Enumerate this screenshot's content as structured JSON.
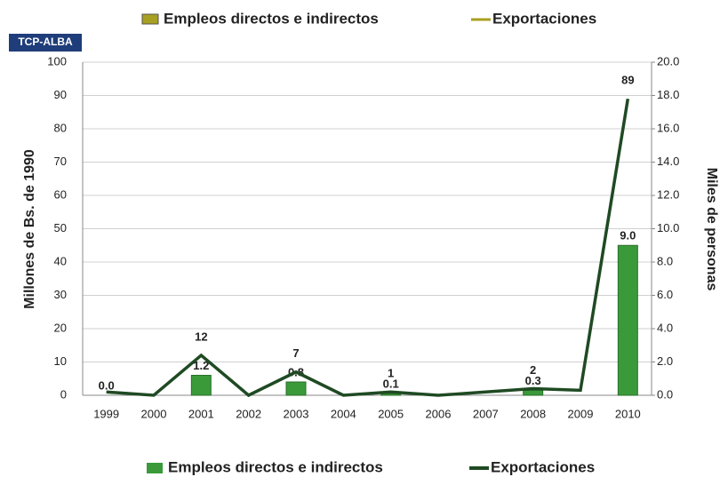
{
  "chart_data": {
    "type": "bar_line",
    "badge": "TCP-ALBA",
    "ylabel": "Millones de Bs. de 1990",
    "y2label": "Miles de personas",
    "categories": [
      "1999",
      "2000",
      "2001",
      "2002",
      "2003",
      "2004",
      "2005",
      "2006",
      "2007",
      "2008",
      "2009",
      "2010"
    ],
    "series": [
      {
        "name": "Empleos directos e indirectos",
        "type": "bar",
        "axis": "y2",
        "color": "#3a9a3a",
        "values": [
          0,
          0,
          1.2,
          0,
          0.8,
          0,
          0.1,
          0,
          0,
          0.3,
          0,
          9.0
        ],
        "value_labels": [
          "0.0",
          null,
          "1.2",
          null,
          "0.8",
          null,
          "0.1",
          null,
          null,
          "0.3",
          null,
          "9.0"
        ]
      },
      {
        "name": "Exportaciones",
        "type": "line",
        "axis": "y",
        "color": "#1f4a23",
        "values": [
          1,
          0,
          12,
          0,
          7,
          0,
          1,
          0,
          1,
          2,
          1.5,
          89
        ],
        "value_labels": [
          null,
          null,
          "12",
          null,
          "7",
          null,
          "1",
          null,
          null,
          "2",
          null,
          "89"
        ]
      }
    ],
    "top_legend": [
      {
        "name": "Empleos directos e indirectos",
        "color": "#a8a020"
      },
      {
        "name": "Exportaciones",
        "color": "#a8a020"
      }
    ],
    "ylim": [
      0,
      100
    ],
    "yticks": [
      0,
      10,
      20,
      30,
      40,
      50,
      60,
      70,
      80,
      90,
      100
    ],
    "y2lim": [
      0,
      20
    ],
    "y2ticks": [
      {
        "value": 0,
        "label": "0.0"
      },
      {
        "value": 2,
        "label": "2.0"
      },
      {
        "value": 4,
        "label": "4.0"
      },
      {
        "value": 6,
        "label": "6.0"
      },
      {
        "value": 8,
        "label": "8.0"
      },
      {
        "value": 10,
        "label": "10.0"
      },
      {
        "value": 12,
        "label": "12.0"
      },
      {
        "value": 14,
        "label": "14.0"
      },
      {
        "value": 16,
        "label": "16.0"
      },
      {
        "value": 18,
        "label": "18.0"
      },
      {
        "value": 20,
        "label": "20.0"
      }
    ],
    "grid": true
  }
}
